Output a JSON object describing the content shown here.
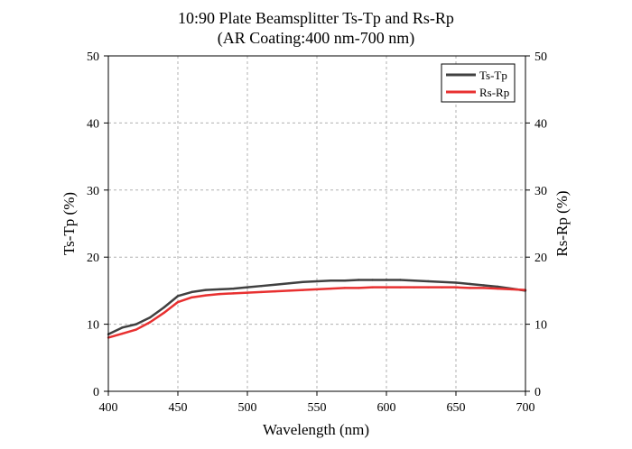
{
  "chart_data": {
    "type": "line",
    "title": "10:90 Plate Beamsplitter Ts-Tp and Rs-Rp",
    "subtitle": "(AR Coating:400 nm-700 nm)",
    "xlabel": "Wavelength (nm)",
    "ylabel": "Ts-Tp (%)",
    "ylabel_right": "Rs-Rp (%)",
    "xlim": [
      400,
      700
    ],
    "ylim": [
      0,
      50
    ],
    "x_ticks": [
      "400",
      "450",
      "500",
      "550",
      "600",
      "650",
      "700"
    ],
    "y_ticks": [
      "0",
      "10",
      "20",
      "30",
      "40",
      "50"
    ],
    "grid": true,
    "legend_position": "top-right",
    "x": [
      400,
      410,
      420,
      430,
      440,
      450,
      460,
      470,
      480,
      490,
      500,
      510,
      520,
      530,
      540,
      550,
      560,
      570,
      580,
      590,
      600,
      610,
      620,
      630,
      640,
      650,
      660,
      670,
      680,
      690,
      700
    ],
    "series": [
      {
        "name": "Ts-Tp",
        "color": "#404040",
        "values": [
          8.5,
          9.5,
          10.0,
          11.0,
          12.5,
          14.2,
          14.8,
          15.1,
          15.2,
          15.3,
          15.5,
          15.7,
          15.9,
          16.1,
          16.3,
          16.4,
          16.5,
          16.5,
          16.6,
          16.6,
          16.6,
          16.6,
          16.5,
          16.4,
          16.3,
          16.2,
          16.0,
          15.8,
          15.6,
          15.3,
          15.0
        ]
      },
      {
        "name": "Rs-Rp",
        "color": "#e83030",
        "values": [
          8.0,
          8.6,
          9.2,
          10.3,
          11.7,
          13.3,
          14.0,
          14.3,
          14.5,
          14.6,
          14.7,
          14.8,
          14.9,
          15.0,
          15.1,
          15.2,
          15.3,
          15.4,
          15.4,
          15.5,
          15.5,
          15.5,
          15.5,
          15.5,
          15.5,
          15.5,
          15.4,
          15.4,
          15.3,
          15.2,
          15.1
        ]
      }
    ]
  }
}
